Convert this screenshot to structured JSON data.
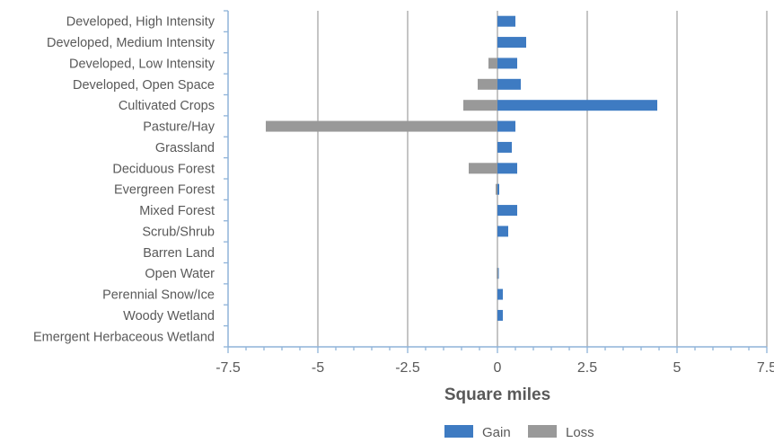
{
  "chart_data": {
    "type": "bar",
    "orientation": "horizontal",
    "stacked": true,
    "title": "",
    "xlabel": "Square miles",
    "ylabel": "",
    "xlim": [
      -7.5,
      7.5
    ],
    "xticks": [
      -7.5,
      -5,
      -2.5,
      0,
      2.5,
      5,
      7.5
    ],
    "xtick_labels": [
      "-7.5",
      "-5",
      "-2.5",
      "0",
      "2.5",
      "5",
      "7.5"
    ],
    "grid": "vertical-major",
    "legend_position": "bottom",
    "categories": [
      "Developed, High Intensity",
      "Developed, Medium Intensity",
      "Developed, Low Intensity",
      "Developed, Open Space",
      "Cultivated Crops",
      "Pasture/Hay",
      "Grassland",
      "Deciduous Forest",
      "Evergreen Forest",
      "Mixed Forest",
      "Scrub/Shrub",
      "Barren Land",
      "Open Water",
      "Perennial Snow/Ice",
      "Woody Wetland",
      "Emergent Herbaceous Wetland"
    ],
    "series": [
      {
        "name": "Gain",
        "color": "#3e7bc2",
        "values": [
          0.5,
          0.8,
          0.55,
          0.65,
          4.45,
          0.5,
          0.4,
          0.55,
          0.05,
          0.55,
          0.3,
          0,
          0.02,
          0.15,
          0.15,
          0
        ]
      },
      {
        "name": "Loss",
        "color": "#999999",
        "values": [
          0,
          0,
          -0.25,
          -0.55,
          -0.95,
          -6.45,
          0,
          -0.8,
          -0.05,
          0,
          0,
          0,
          -0.02,
          0,
          0,
          0
        ]
      }
    ]
  }
}
